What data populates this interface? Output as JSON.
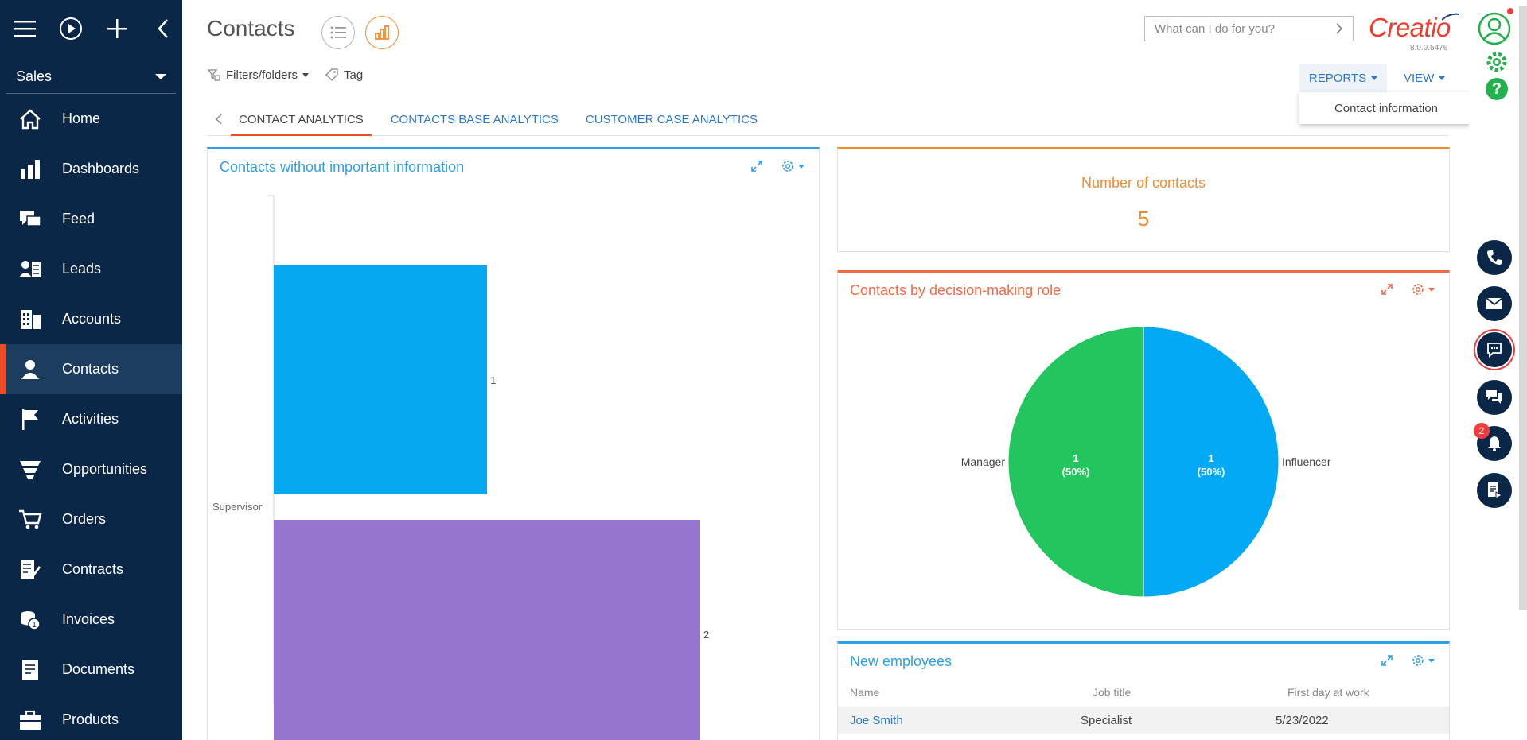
{
  "app": {
    "workspace": "Sales",
    "page_title": "Contacts",
    "search_placeholder": "What can I do for you?",
    "logo": "Creatio",
    "version": "8.0.0.5476"
  },
  "nav": [
    {
      "label": "Home",
      "icon": "home-icon"
    },
    {
      "label": "Dashboards",
      "icon": "dashboards-icon"
    },
    {
      "label": "Feed",
      "icon": "feed-icon"
    },
    {
      "label": "Leads",
      "icon": "leads-icon"
    },
    {
      "label": "Accounts",
      "icon": "accounts-icon"
    },
    {
      "label": "Contacts",
      "icon": "contacts-icon",
      "active": true
    },
    {
      "label": "Activities",
      "icon": "activities-icon"
    },
    {
      "label": "Opportunities",
      "icon": "opportunities-icon"
    },
    {
      "label": "Orders",
      "icon": "orders-icon"
    },
    {
      "label": "Contracts",
      "icon": "contracts-icon"
    },
    {
      "label": "Invoices",
      "icon": "invoices-icon"
    },
    {
      "label": "Documents",
      "icon": "documents-icon"
    },
    {
      "label": "Products",
      "icon": "products-icon"
    }
  ],
  "toolbar": {
    "filters_label": "Filters/folders",
    "tag_label": "Tag",
    "reports_label": "REPORTS",
    "view_label": "VIEW",
    "reports_menu_item": "Contact information"
  },
  "tabs": [
    "CONTACT ANALYTICS",
    "CONTACTS BASE ANALYTICS",
    "CUSTOMER CASE ANALYTICS"
  ],
  "widgets": {
    "contacts_without_info": {
      "title": "Contacts without important information"
    },
    "number_of_contacts": {
      "title": "Number of contacts",
      "value": "5"
    },
    "by_role": {
      "title": "Contacts by decision-making role"
    },
    "new_employees": {
      "title": "New employees",
      "columns": [
        "Name",
        "Job title",
        "First day at work"
      ],
      "rows": [
        {
          "name": "Joe Smith",
          "job_title": "Specialist",
          "first_day": "5/23/2022"
        }
      ]
    }
  },
  "colors": {
    "sidebar": "#0b2747",
    "accent_red": "#ef4a26",
    "link_blue": "#2f78c4",
    "bar_blue": "#04a9f0",
    "bar_purple": "#9575cd",
    "pie_green": "#22c55e",
    "pie_blue": "#03a9f4"
  },
  "rail": {
    "notification_count": "2"
  },
  "chart_data": [
    {
      "type": "bar",
      "orientation": "horizontal",
      "categories": [
        "",
        "Supervisor"
      ],
      "values": [
        1,
        2
      ],
      "value_labels": [
        "1",
        "2"
      ],
      "colors": [
        "#04a9f0",
        "#9575cd"
      ],
      "xlim": [
        0,
        2
      ]
    },
    {
      "type": "pie",
      "labels": [
        "Influencer",
        "Manager"
      ],
      "values": [
        1,
        1
      ],
      "value_labels": [
        "1",
        "1"
      ],
      "percent_labels": [
        "(50%)",
        "(50%)"
      ],
      "colors": [
        "#03a9f4",
        "#22c55e"
      ]
    }
  ]
}
